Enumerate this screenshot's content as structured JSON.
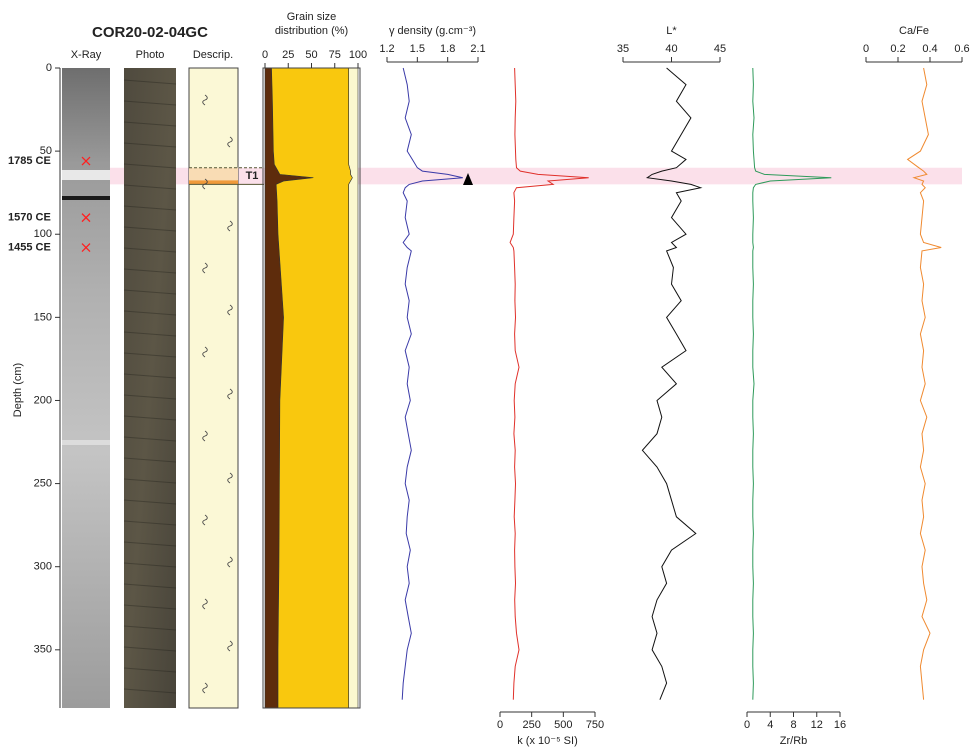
{
  "chart_data": [
    {
      "type": "core",
      "title": "COR20-02-04GC",
      "columns": [
        "X-Ray",
        "Photo",
        "Descrip."
      ],
      "ylabel": "Depth (cm)",
      "ylim": [
        0,
        385
      ],
      "yticks": [
        0,
        50,
        100,
        150,
        200,
        250,
        300,
        350
      ],
      "ages": [
        {
          "label": "1785 CE",
          "depth": 56
        },
        {
          "label": "1570 CE",
          "depth": 90
        },
        {
          "label": "1455 CE",
          "depth": 108
        }
      ],
      "event": {
        "label": "T1",
        "depth": [
          60,
          70
        ]
      }
    },
    {
      "type": "stacked-area",
      "title": [
        "Grain size",
        "distribution (%)"
      ],
      "axis_position": "top",
      "xlim": [
        0,
        100
      ],
      "xticks": [
        0,
        25,
        50,
        75,
        100
      ],
      "ylim": [
        0,
        385
      ],
      "depth": [
        0,
        20,
        50,
        58,
        62,
        64,
        66,
        68,
        70,
        80,
        100,
        150,
        200,
        300,
        350,
        385
      ],
      "series": [
        {
          "color": "#5e2c0c",
          "values": [
            7,
            8,
            9,
            10,
            14,
            16,
            52,
            20,
            12,
            13,
            14,
            20,
            16,
            15,
            14,
            14
          ]
        },
        {
          "color": "#f9c80e",
          "values": [
            83,
            82,
            81,
            80,
            78,
            76,
            42,
            72,
            78,
            77,
            76,
            70,
            74,
            75,
            76,
            76
          ]
        },
        {
          "color": "#fbf8cf",
          "values": [
            10,
            10,
            10,
            10,
            8,
            8,
            6,
            8,
            10,
            10,
            10,
            10,
            10,
            10,
            10,
            10
          ]
        }
      ]
    },
    {
      "type": "line",
      "xlabel": "γ density (g.cm⁻³)",
      "axis_position": "top",
      "color": "#3a3aa8",
      "xlim": [
        1.2,
        2.1
      ],
      "xticks": [
        1.2,
        1.5,
        1.8,
        2.1
      ],
      "ylim": [
        0,
        385
      ],
      "depth": [
        0,
        10,
        20,
        30,
        40,
        50,
        55,
        60,
        62,
        64,
        66,
        68,
        70,
        72,
        75,
        80,
        90,
        100,
        105,
        108,
        110,
        120,
        130,
        140,
        150,
        160,
        170,
        180,
        190,
        200,
        210,
        220,
        230,
        240,
        250,
        260,
        270,
        280,
        290,
        300,
        310,
        320,
        330,
        340,
        350,
        360,
        370,
        380
      ],
      "values": [
        1.36,
        1.4,
        1.42,
        1.38,
        1.44,
        1.4,
        1.45,
        1.5,
        1.55,
        1.8,
        1.95,
        1.55,
        1.42,
        1.38,
        1.36,
        1.4,
        1.38,
        1.42,
        1.36,
        1.4,
        1.44,
        1.4,
        1.38,
        1.42,
        1.4,
        1.44,
        1.38,
        1.42,
        1.4,
        1.43,
        1.38,
        1.41,
        1.44,
        1.4,
        1.38,
        1.42,
        1.4,
        1.39,
        1.43,
        1.4,
        1.42,
        1.38,
        1.41,
        1.44,
        1.4,
        1.38,
        1.36,
        1.35
      ]
    },
    {
      "type": "line",
      "xlabel": "k (x 10⁻⁵ SI)",
      "axis_position": "bottom",
      "color": "#e0302a",
      "xlim": [
        0,
        750
      ],
      "xticks": [
        0,
        250,
        500,
        750
      ],
      "ylim": [
        0,
        385
      ],
      "depth": [
        0,
        10,
        20,
        30,
        40,
        50,
        55,
        60,
        62,
        64,
        66,
        68,
        70,
        72,
        75,
        80,
        90,
        100,
        105,
        108,
        110,
        120,
        130,
        140,
        150,
        160,
        170,
        180,
        190,
        200,
        210,
        220,
        230,
        240,
        250,
        260,
        270,
        280,
        290,
        300,
        310,
        320,
        330,
        340,
        350,
        360,
        370,
        380
      ],
      "values": [
        115,
        120,
        125,
        120,
        118,
        122,
        125,
        130,
        160,
        300,
        700,
        380,
        420,
        130,
        110,
        115,
        110,
        105,
        80,
        105,
        110,
        115,
        120,
        118,
        122,
        115,
        120,
        150,
        120,
        112,
        118,
        110,
        120,
        115,
        122,
        118,
        112,
        120,
        115,
        118,
        122,
        116,
        120,
        130,
        150,
        120,
        110,
        105
      ]
    },
    {
      "type": "line",
      "xlabel": "L*",
      "axis_position": "top",
      "color": "#111111",
      "xlim": [
        35,
        45
      ],
      "xticks": [
        35,
        40,
        45
      ],
      "ylim": [
        0,
        385
      ],
      "depth": [
        0,
        10,
        20,
        30,
        40,
        50,
        55,
        60,
        62,
        64,
        66,
        68,
        70,
        72,
        75,
        80,
        90,
        100,
        105,
        108,
        110,
        120,
        130,
        140,
        150,
        160,
        170,
        180,
        190,
        200,
        210,
        220,
        230,
        240,
        250,
        260,
        270,
        280,
        290,
        300,
        310,
        320,
        330,
        340,
        350,
        360,
        370,
        380
      ],
      "values": [
        39.5,
        41.5,
        40.5,
        42,
        41,
        40,
        41.5,
        40.5,
        39,
        38,
        37.5,
        40,
        42,
        43,
        40.5,
        41,
        40,
        41.5,
        40,
        40.5,
        39.5,
        40.2,
        40,
        41,
        39.5,
        40.5,
        41.5,
        39,
        40.5,
        38.5,
        39,
        38.5,
        37,
        38.5,
        39.5,
        40,
        40.5,
        42.5,
        40,
        39,
        39.5,
        38.5,
        38,
        38.5,
        38,
        39,
        39.5,
        38.8
      ]
    },
    {
      "type": "line",
      "xlabel": "Zr/Rb",
      "axis_position": "bottom",
      "color": "#2e9a5a",
      "xlim": [
        0,
        16
      ],
      "xticks": [
        0,
        4,
        8,
        12,
        16
      ],
      "ylim": [
        0,
        385
      ],
      "depth": [
        0,
        10,
        20,
        30,
        40,
        50,
        55,
        60,
        62,
        64,
        66,
        68,
        70,
        72,
        75,
        80,
        90,
        100,
        105,
        108,
        110,
        120,
        130,
        140,
        150,
        160,
        170,
        180,
        190,
        200,
        210,
        220,
        230,
        240,
        250,
        260,
        270,
        280,
        290,
        300,
        310,
        320,
        330,
        340,
        350,
        360,
        370,
        380
      ],
      "values": [
        1,
        1.1,
        1,
        1.2,
        1,
        1.1,
        1.2,
        1.3,
        1.5,
        3,
        14.5,
        4,
        1.5,
        1.1,
        1,
        1,
        1.1,
        1,
        1,
        1.1,
        1,
        1,
        1.1,
        1,
        1,
        1.1,
        1,
        1,
        1.2,
        1,
        1,
        1.1,
        1,
        1,
        1.1,
        1,
        1,
        1.1,
        1,
        1,
        1.1,
        1,
        1,
        1.1,
        1,
        1,
        1.1,
        1
      ]
    },
    {
      "type": "line",
      "xlabel": "Ca/Fe",
      "axis_position": "top",
      "color": "#f08a30",
      "xlim": [
        0,
        0.6
      ],
      "xticks": [
        0,
        0.2,
        0.4,
        0.6
      ],
      "ylim": [
        0,
        385
      ],
      "depth": [
        0,
        10,
        20,
        30,
        40,
        50,
        55,
        60,
        62,
        64,
        66,
        68,
        70,
        72,
        75,
        80,
        90,
        100,
        105,
        108,
        110,
        120,
        130,
        140,
        150,
        160,
        170,
        180,
        190,
        200,
        210,
        220,
        230,
        240,
        250,
        260,
        270,
        280,
        290,
        300,
        310,
        320,
        330,
        340,
        350,
        360,
        370,
        380
      ],
      "values": [
        0.36,
        0.38,
        0.35,
        0.37,
        0.39,
        0.34,
        0.26,
        0.33,
        0.36,
        0.38,
        0.3,
        0.36,
        0.35,
        0.37,
        0.34,
        0.36,
        0.35,
        0.34,
        0.36,
        0.47,
        0.35,
        0.34,
        0.36,
        0.35,
        0.37,
        0.34,
        0.36,
        0.35,
        0.37,
        0.34,
        0.38,
        0.35,
        0.36,
        0.34,
        0.37,
        0.35,
        0.36,
        0.34,
        0.37,
        0.35,
        0.36,
        0.38,
        0.35,
        0.4,
        0.36,
        0.34,
        0.35,
        0.36
      ]
    }
  ]
}
